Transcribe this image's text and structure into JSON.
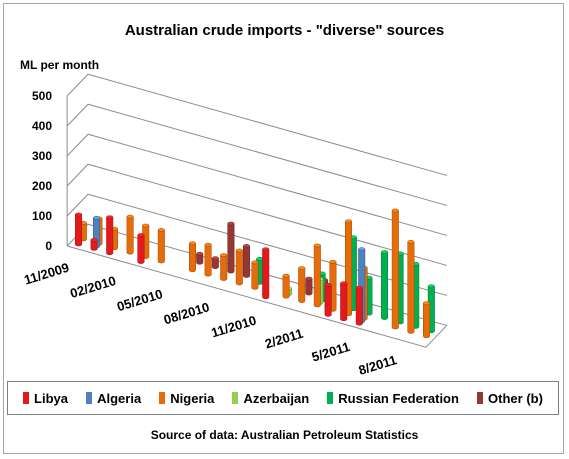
{
  "chart_data": {
    "type": "bar",
    "subtype": "3d-column",
    "title": "Australian crude imports - \"diverse\" sources",
    "ylabel": "ML per month",
    "xlabel": "",
    "ylim": [
      0,
      500
    ],
    "yticks": [
      0,
      100,
      200,
      300,
      400,
      500
    ],
    "grid": true,
    "legend_position": "bottom",
    "source": "Source of data: Australian Petroleum Statistics",
    "categories": [
      "11/2009",
      "12/2009",
      "01/2010",
      "02/2010",
      "03/2010",
      "04/2010",
      "05/2010",
      "06/2010",
      "07/2010",
      "08/2010",
      "09/2010",
      "10/2010",
      "11/2010",
      "12/2010",
      "1/2011",
      "2/2011",
      "3/2011",
      "4/2011",
      "5/2011",
      "6/2011",
      "7/2011",
      "8/2011",
      "9/2011"
    ],
    "xtick_labels": [
      "11/2009",
      "02/2010",
      "05/2010",
      "08/2010",
      "11/2010",
      "2/2011",
      "5/2011",
      "8/2011"
    ],
    "series": [
      {
        "name": "Libya",
        "color": "#e31a1c",
        "values": [
          100,
          30,
          120,
          0,
          90,
          0,
          0,
          0,
          0,
          0,
          0,
          0,
          160,
          0,
          0,
          0,
          100,
          120,
          120,
          0,
          0,
          0,
          0
        ]
      },
      {
        "name": "Algeria",
        "color": "#4f81bd",
        "values": [
          0,
          95,
          0,
          0,
          0,
          0,
          0,
          0,
          0,
          0,
          0,
          0,
          0,
          0,
          0,
          0,
          0,
          0,
          240,
          0,
          0,
          0,
          0
        ]
      },
      {
        "name": "Nigeria",
        "color": "#e46c0a",
        "values": [
          55,
          85,
          65,
          120,
          105,
          105,
          0,
          90,
          100,
          80,
          110,
          85,
          0,
          70,
          110,
          200,
          160,
          310,
          170,
          0,
          390,
          300,
          110
        ]
      },
      {
        "name": "Azerbaijan",
        "color": "#92d050",
        "values": [
          0,
          0,
          0,
          0,
          0,
          0,
          0,
          0,
          0,
          0,
          0,
          0,
          0,
          20,
          0,
          80,
          0,
          0,
          0,
          0,
          0,
          0,
          0
        ]
      },
      {
        "name": "Russian Federation",
        "color": "#00b050",
        "values": [
          0,
          0,
          0,
          0,
          0,
          0,
          0,
          0,
          0,
          0,
          0,
          80,
          0,
          0,
          0,
          90,
          0,
          240,
          120,
          220,
          230,
          210,
          150
        ]
      },
      {
        "name": "Other (b)",
        "color": "#953735",
        "values": [
          0,
          0,
          0,
          0,
          0,
          0,
          0,
          30,
          30,
          160,
          100,
          0,
          0,
          0,
          50,
          60,
          0,
          0,
          0,
          0,
          0,
          0,
          0
        ]
      }
    ]
  },
  "legend": {
    "items": [
      {
        "label": "Libya",
        "color": "#e31a1c"
      },
      {
        "label": "Algeria",
        "color": "#4f81bd"
      },
      {
        "label": "Nigeria",
        "color": "#e46c0a"
      },
      {
        "label": "Azerbaijan",
        "color": "#92d050"
      },
      {
        "label": "Russian Federation",
        "color": "#00b050"
      },
      {
        "label": "Other (b)",
        "color": "#953735"
      }
    ]
  }
}
